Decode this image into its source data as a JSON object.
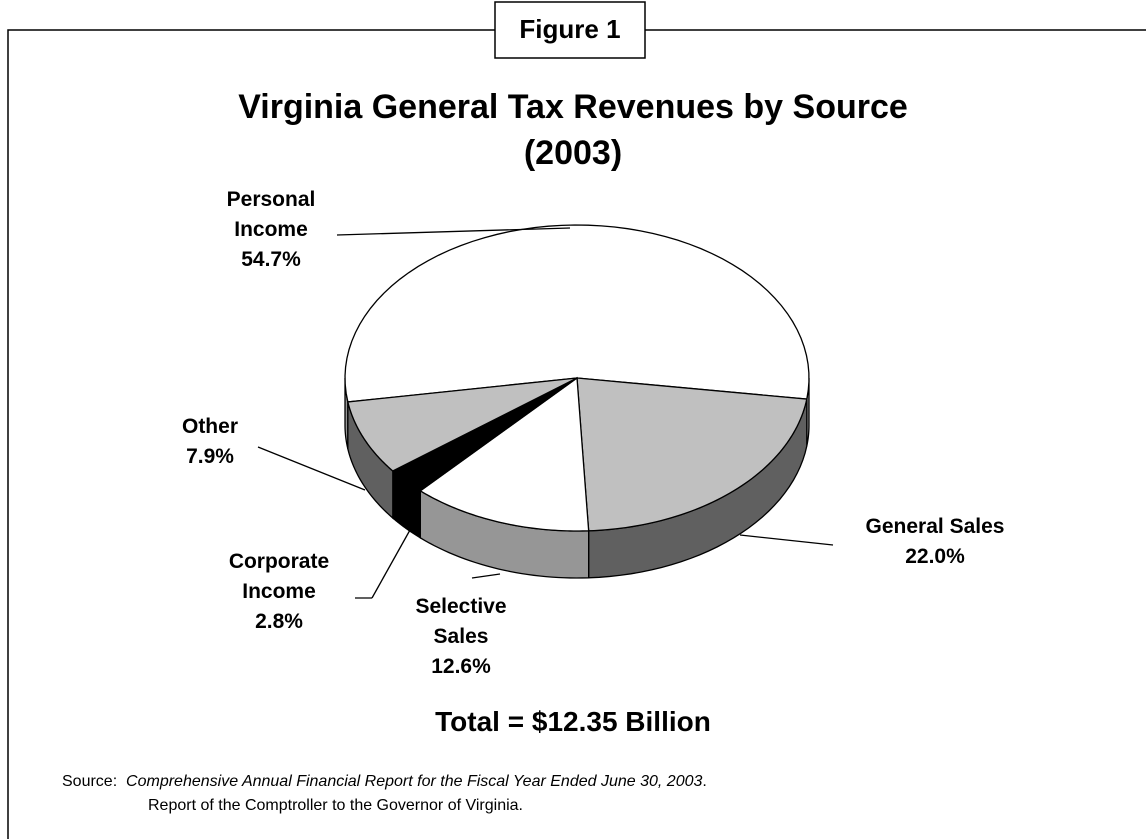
{
  "figure_label": "Figure 1",
  "chart_data": {
    "type": "pie",
    "title": "Virginia General Tax Revenues by Source",
    "subtitle": "(2003)",
    "categories": [
      "Personal Income",
      "General Sales",
      "Selective Sales",
      "Corporate Income",
      "Other"
    ],
    "values": [
      54.7,
      22.0,
      12.6,
      2.8,
      7.9
    ],
    "value_labels": [
      "54.7%",
      "22.0%",
      "12.6%",
      "2.8%",
      "7.9%"
    ],
    "colors": [
      "#ffffff",
      "#c0c0c0",
      "#ffffff",
      "#000000",
      "#c0c0c0"
    ],
    "annotation": "Total = $12.35 Billion"
  },
  "source": {
    "prefix": "Source:",
    "title": "Comprehensive Annual Financial Report for the Fiscal Year Ended June 30, 2003",
    "title_end": ".",
    "line2": "Report of the Comptroller to the Governor of Virginia."
  }
}
